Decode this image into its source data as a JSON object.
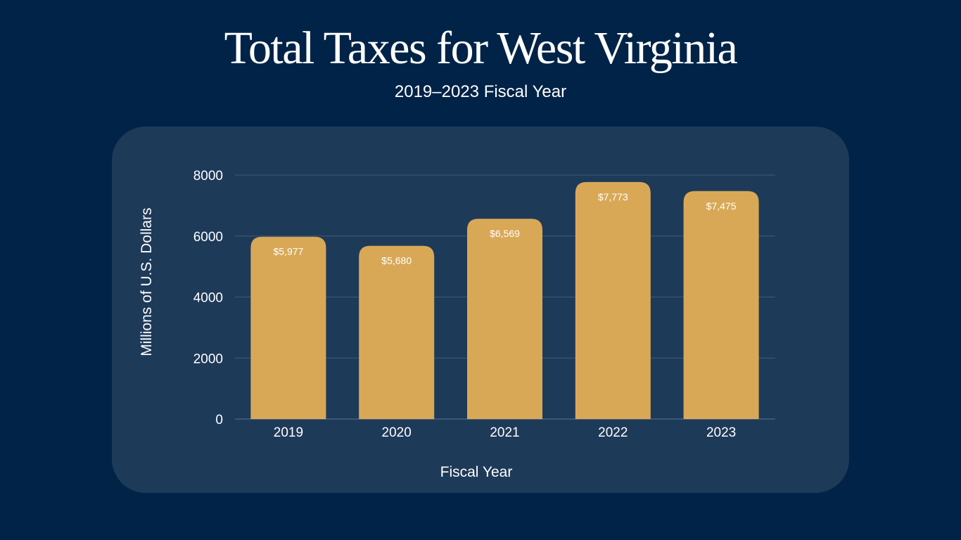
{
  "header": {
    "title": "Total Taxes for West Virginia",
    "subtitle": "2019–2023 Fiscal Year"
  },
  "colors": {
    "background": "#012347",
    "panel": "#1e3a59",
    "bar": "#d9a857",
    "gridline": "#3f5b78",
    "text": "#ffffff"
  },
  "chart_data": {
    "type": "bar",
    "title": "Total Taxes for West Virginia",
    "subtitle": "2019–2023 Fiscal Year",
    "xlabel": "Fiscal Year",
    "ylabel": "Millions of U.S. Dollars",
    "categories": [
      "2019",
      "2020",
      "2021",
      "2022",
      "2023"
    ],
    "values": [
      5977,
      5680,
      6569,
      7773,
      7475
    ],
    "data_labels": [
      "$5,977",
      "$5,680",
      "$6,569",
      "$7,773",
      "$7,475"
    ],
    "ylim": [
      0,
      8000
    ],
    "yticks": [
      0,
      2000,
      4000,
      6000,
      8000
    ],
    "ytick_labels": [
      "0",
      "2000",
      "4000",
      "6000",
      "8000"
    ],
    "grid": true,
    "legend": "none"
  }
}
